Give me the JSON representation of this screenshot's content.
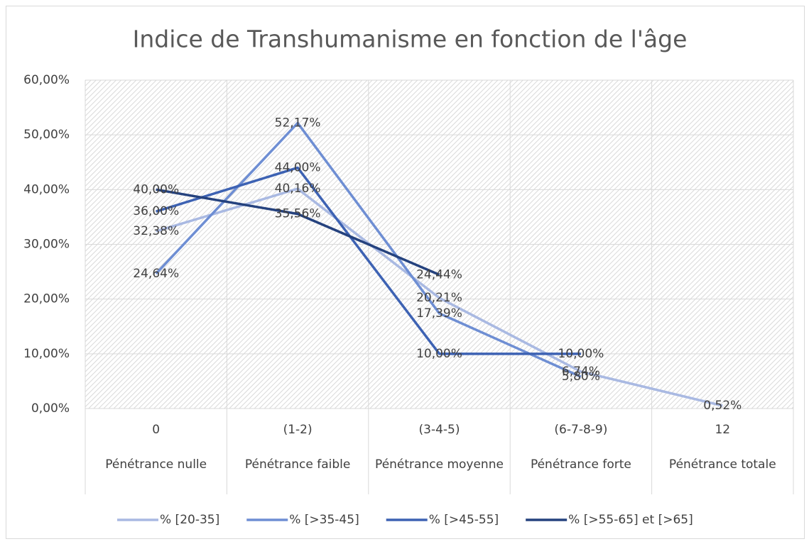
{
  "chart_data": {
    "type": "line",
    "title": "Indice de Transhumanisme en fonction de l'âge",
    "categories": [
      "0",
      "(1-2)",
      "(3-4-5)",
      "(6-7-8-9)",
      "12"
    ],
    "category_groups": [
      "Pénétrance nulle",
      "Pénétrance faible",
      "Pénétrance moyenne",
      "Pénétrance forte",
      "Pénétrance totale"
    ],
    "series": [
      {
        "name": "% [20-35]",
        "color": "#a9b9e2",
        "values": [
          32.38,
          40.16,
          20.21,
          6.74,
          0.52
        ],
        "value_labels": [
          "32,38%",
          "40,16%",
          "20,21%",
          "6,74%",
          "0,52%"
        ]
      },
      {
        "name": "% [>35-45]",
        "color": "#6e8ed3",
        "values": [
          24.64,
          52.17,
          17.39,
          5.8,
          null
        ],
        "value_labels": [
          "24,64%",
          "52,17%",
          "17,39%",
          "5,80%",
          null
        ]
      },
      {
        "name": "% [>45-55]",
        "color": "#3d62b3",
        "values": [
          36.0,
          44.0,
          10.0,
          10.0,
          null
        ],
        "value_labels": [
          "36,00%",
          "44,00%",
          "10,00%",
          "10,00%",
          null
        ]
      },
      {
        "name": "% [>55-65] et [>65]",
        "color": "#25427e",
        "values": [
          40.0,
          35.56,
          24.44,
          null,
          null
        ],
        "value_labels": [
          "40,00%",
          "35,56%",
          "24,44%",
          null,
          null
        ]
      }
    ],
    "ylim": [
      0,
      60
    ],
    "yticks": [
      {
        "value": 0,
        "label": "0,00%"
      },
      {
        "value": 10,
        "label": "10,00%"
      },
      {
        "value": 20,
        "label": "20,00%"
      },
      {
        "value": 30,
        "label": "30,00%"
      },
      {
        "value": 40,
        "label": "40,00%"
      },
      {
        "value": 50,
        "label": "50,00%"
      },
      {
        "value": 60,
        "label": "60,00%"
      }
    ],
    "grid": true,
    "legend": "bottom"
  }
}
